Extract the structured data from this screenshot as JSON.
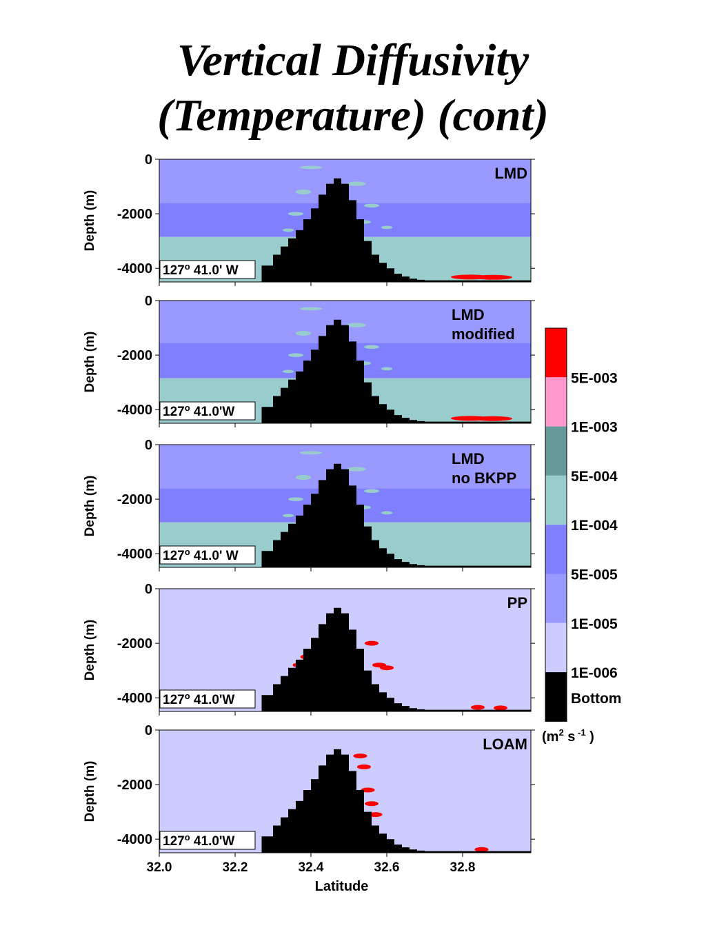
{
  "title_lines": [
    "Vertical Diffusivity",
    "(Temperature) (cont)"
  ],
  "chart_data": {
    "type": "heatmap",
    "xlabel": "Latitude",
    "ylabel": "Depth (m)",
    "xlim": [
      32.0,
      32.98
    ],
    "ylim": [
      -4500,
      0
    ],
    "xticks": [
      32.0,
      32.2,
      32.4,
      32.6,
      32.8
    ],
    "xtick_labels": [
      "32.0",
      "32.2",
      "32.4",
      "32.6",
      "32.8"
    ],
    "yticks": [
      0,
      -2000,
      -4000
    ],
    "ytick_labels": [
      "0",
      "-2000",
      "-4000"
    ],
    "panels": [
      {
        "label_lines": [
          "LMD"
        ],
        "location": "127° 41.0' W",
        "location_parts": [
          "127",
          "o",
          " 41.0' W"
        ],
        "scheme": "layered",
        "layers": [
          {
            "color": "#9999ff",
            "top": 0,
            "bottom": -1600
          },
          {
            "color": "#7f7fff",
            "top": -1600,
            "bottom": -2850
          },
          {
            "color": "#99cccc",
            "top": -2850,
            "bottom": -4500
          }
        ]
      },
      {
        "label_lines": [
          "LMD",
          "modified"
        ],
        "location": "127° 41.0'W",
        "location_parts": [
          "127",
          "o",
          " 41.0'W"
        ],
        "scheme": "layered",
        "layers": [
          {
            "color": "#9999ff",
            "top": 0,
            "bottom": -1550
          },
          {
            "color": "#7f7fff",
            "top": -1550,
            "bottom": -2850
          },
          {
            "color": "#99cccc",
            "top": -2850,
            "bottom": -4500
          }
        ]
      },
      {
        "label_lines": [
          "LMD",
          "no BKPP"
        ],
        "location": "127° 41.0' W",
        "location_parts": [
          "127",
          "o",
          " 41.0' W"
        ],
        "scheme": "layered",
        "layers": [
          {
            "color": "#9999ff",
            "top": 0,
            "bottom": -1600
          },
          {
            "color": "#7f7fff",
            "top": -1600,
            "bottom": -2850
          },
          {
            "color": "#99cccc",
            "top": -2850,
            "bottom": -4500
          }
        ]
      },
      {
        "label_lines": [
          "PP"
        ],
        "location": "127°  41.0'W",
        "location_parts": [
          "127",
          "o",
          "  41.0'W"
        ],
        "scheme": "uniform",
        "layers": [
          {
            "color": "#ccccff",
            "top": 0,
            "bottom": -4500
          }
        ]
      },
      {
        "label_lines": [
          "LOAM"
        ],
        "location": "127° 41.0'W",
        "location_parts": [
          "127",
          "o",
          " 41.0'W"
        ],
        "scheme": "uniform",
        "layers": [
          {
            "color": "#ccccff",
            "top": 0,
            "bottom": -4500
          }
        ]
      }
    ],
    "seamount_profile": {
      "lat": [
        32.27,
        32.3,
        32.32,
        32.34,
        32.36,
        32.38,
        32.4,
        32.42,
        32.44,
        32.46,
        32.48,
        32.5,
        32.52,
        32.54,
        32.56,
        32.58,
        32.6,
        32.62,
        32.64,
        32.66,
        32.68,
        32.7,
        32.98
      ],
      "depth": [
        -3900,
        -3500,
        -3200,
        -2900,
        -2600,
        -2200,
        -1800,
        -1300,
        -900,
        -700,
        -900,
        -1500,
        -2200,
        -3000,
        -3500,
        -3800,
        -4000,
        -4200,
        -4300,
        -4380,
        -4420,
        -4440,
        -4450
      ]
    },
    "colorbar": {
      "colors": [
        "#ff0000",
        "#ff99cc",
        "#669999",
        "#99cccc",
        "#7f7fff",
        "#9999ff",
        "#ccccff",
        "#000000"
      ],
      "labels": [
        "5E-003",
        "1E-003",
        "5E-004",
        "1E-004",
        "5E-005",
        "1E-005",
        "1E-006",
        "Bottom"
      ],
      "units_parts": [
        "(m",
        "2",
        " s",
        " -1",
        " )"
      ]
    }
  }
}
